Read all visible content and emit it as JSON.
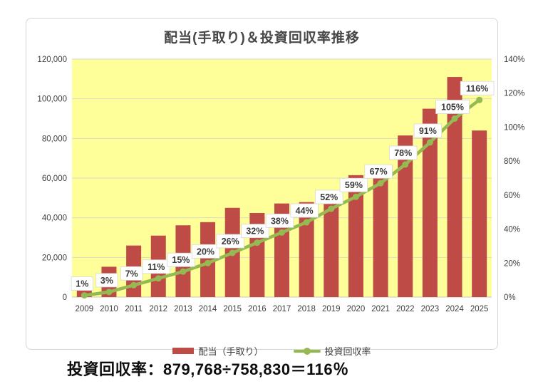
{
  "title": "配当(手取り)＆投資回収率推移",
  "chart_data": {
    "type": "bar+line combo",
    "title": "配当(手取り)＆投資回収率推移",
    "plot_background": "#ffff99",
    "gridline_color": "#d9d9c6",
    "axis_text_color": "#3d3d3d",
    "categories": [
      "2009",
      "2010",
      "2011",
      "2012",
      "2013",
      "2014",
      "2015",
      "2016",
      "2017",
      "2018",
      "2019",
      "2020",
      "2021",
      "2022",
      "2023",
      "2024",
      "2025"
    ],
    "series": [
      {
        "name": "配当（手取り）",
        "type": "bar",
        "axis": "left",
        "color": "#bf4b47",
        "values": [
          3700,
          15300,
          26000,
          31000,
          36200,
          37800,
          45000,
          42400,
          47200,
          47900,
          50000,
          61500,
          64000,
          81500,
          95000,
          111000,
          84000
        ]
      },
      {
        "name": "投資回収率",
        "type": "line",
        "axis": "right",
        "color": "#95ba52",
        "values": [
          1,
          3,
          7,
          11,
          15,
          20,
          26,
          32,
          38,
          44,
          52,
          59,
          67,
          78,
          91,
          105,
          116
        ],
        "point_labels": [
          "1%",
          "3%",
          "7%",
          "11%",
          "15%",
          "20%",
          "26%",
          "32%",
          "38%",
          "44%",
          "52%",
          "59%",
          "67%",
          "78%",
          "91%",
          "105%",
          "116%"
        ]
      }
    ],
    "left_axis": {
      "min": 0,
      "max": 120000,
      "ticks": [
        "0",
        "20,000",
        "40,000",
        "60,000",
        "80,000",
        "100,000",
        "120,000"
      ]
    },
    "right_axis": {
      "min": 0,
      "max": 140,
      "ticks": [
        "0%",
        "20%",
        "40%",
        "60%",
        "80%",
        "100%",
        "120%",
        "140%"
      ]
    },
    "legend_position": "bottom",
    "grid": "horizontal only"
  },
  "footer": {
    "formula": "投資回収率：879,768÷758,830＝116％"
  }
}
